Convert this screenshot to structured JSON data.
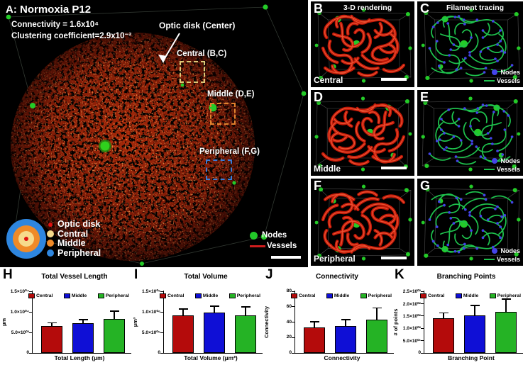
{
  "figure": {
    "panelA": {
      "title": "A: Normoxia P12",
      "stat1": "Connectivity = 1.6x10⁴",
      "stat2": "Clustering coefficient=2.9x10⁻²",
      "optic_label": "Optic disk (Center)",
      "central_label": "Central (B,C)",
      "middle_label": "Middle (D,E)",
      "peripheral_label": "Peripheral (F,G)",
      "roi_box_colors": {
        "central": "#ddc878",
        "middle": "#e2832e",
        "peripheral": "#3b7cd6"
      },
      "region_legend": [
        {
          "label": "Optic disk",
          "color": "#e01010"
        },
        {
          "label": "Central",
          "color": "#f6da8c"
        },
        {
          "label": "Middle",
          "color": "#ef8a28"
        },
        {
          "label": "Peripheral",
          "color": "#2e86df"
        }
      ],
      "net_legend": {
        "nodes": "Nodes",
        "vessels": "Vessels",
        "node_color": "#22c829",
        "vessel_color": "#cf1d1d"
      }
    },
    "trace_legend": {
      "nodes": "Nodes",
      "vessels": "Vessels",
      "node_color": "#4444ea",
      "vessel_color": "#1ec24d"
    },
    "sub_panels": [
      {
        "letter": "B",
        "title": "3-D rendering",
        "caption": "Central"
      },
      {
        "letter": "C",
        "title": "Filament tracing"
      },
      {
        "letter": "D",
        "caption": "Middle"
      },
      {
        "letter": "E"
      },
      {
        "letter": "F",
        "caption": "Peripheral"
      },
      {
        "letter": "G"
      }
    ]
  },
  "chart_data": [
    {
      "panel": "H",
      "type": "bar",
      "title": "Total Vessel Length",
      "categories": [
        "Central",
        "Middle",
        "Peripheral"
      ],
      "values": [
        6600,
        7300,
        8300
      ],
      "errors": [
        900,
        900,
        2000
      ],
      "bar_colors": [
        "#b40b0b",
        "#0f0fd6",
        "#25b325"
      ],
      "ylabel": "µm",
      "xlabel": "Total Length (µm)",
      "ylim": [
        0,
        15000
      ],
      "legend_position": "top",
      "yticks": [
        {
          "v": 0,
          "label": "0"
        },
        {
          "v": 5000,
          "label": "5.0×10⁰³"
        },
        {
          "v": 10000,
          "label": "1.0×10⁰⁴"
        },
        {
          "v": 15000,
          "label": "1.5×10⁰⁴"
        }
      ]
    },
    {
      "panel": "I",
      "type": "bar",
      "title": "Total Volume",
      "categories": [
        "Central",
        "Middle",
        "Peripheral"
      ],
      "values": [
        920000,
        990000,
        920000
      ],
      "errors": [
        160000,
        160000,
        210000
      ],
      "bar_colors": [
        "#b40b0b",
        "#0f0fd6",
        "#25b325"
      ],
      "ylabel": "µm³",
      "xlabel": "Total Volume (µm³)",
      "ylim": [
        0,
        1500000
      ],
      "legend_position": "top",
      "yticks": [
        {
          "v": 0,
          "label": "0"
        },
        {
          "v": 500000,
          "label": "5.0×10⁰⁵"
        },
        {
          "v": 1000000,
          "label": "1.0×10⁰⁶"
        },
        {
          "v": 1500000,
          "label": "1.5×10⁰⁶"
        }
      ]
    },
    {
      "panel": "J",
      "type": "bar",
      "title": "Connectivity",
      "categories": [
        "Central",
        "Middle",
        "Peripheral"
      ],
      "values": [
        33,
        35,
        43
      ],
      "errors": [
        8,
        9,
        16
      ],
      "bar_colors": [
        "#b40b0b",
        "#0f0fd6",
        "#25b325"
      ],
      "ylabel": "Connectivity",
      "xlabel": "Connectivity",
      "ylim": [
        0,
        80
      ],
      "legend_position": "top",
      "yticks": [
        {
          "v": 0,
          "label": "0"
        },
        {
          "v": 20,
          "label": "20"
        },
        {
          "v": 40,
          "label": "40"
        },
        {
          "v": 60,
          "label": "60"
        },
        {
          "v": 80,
          "label": "80"
        }
      ]
    },
    {
      "panel": "K",
      "type": "bar",
      "title": "Branching Points",
      "categories": [
        "Central",
        "Middle",
        "Peripheral"
      ],
      "values": [
        140,
        153,
        167
      ],
      "errors": [
        25,
        41,
        53
      ],
      "bar_colors": [
        "#b40b0b",
        "#0f0fd6",
        "#25b325"
      ],
      "ylabel": "# of points",
      "xlabel": "Branching Point",
      "ylim": [
        0,
        250
      ],
      "legend_position": "top",
      "yticks": [
        {
          "v": 0,
          "label": "0"
        },
        {
          "v": 50,
          "label": "5.0×10⁰¹"
        },
        {
          "v": 100,
          "label": "1.0×10⁰²"
        },
        {
          "v": 150,
          "label": "1.5×10⁰²"
        },
        {
          "v": 200,
          "label": "2.0×10⁰²"
        },
        {
          "v": 250,
          "label": "2.5×10⁰²"
        }
      ]
    }
  ]
}
